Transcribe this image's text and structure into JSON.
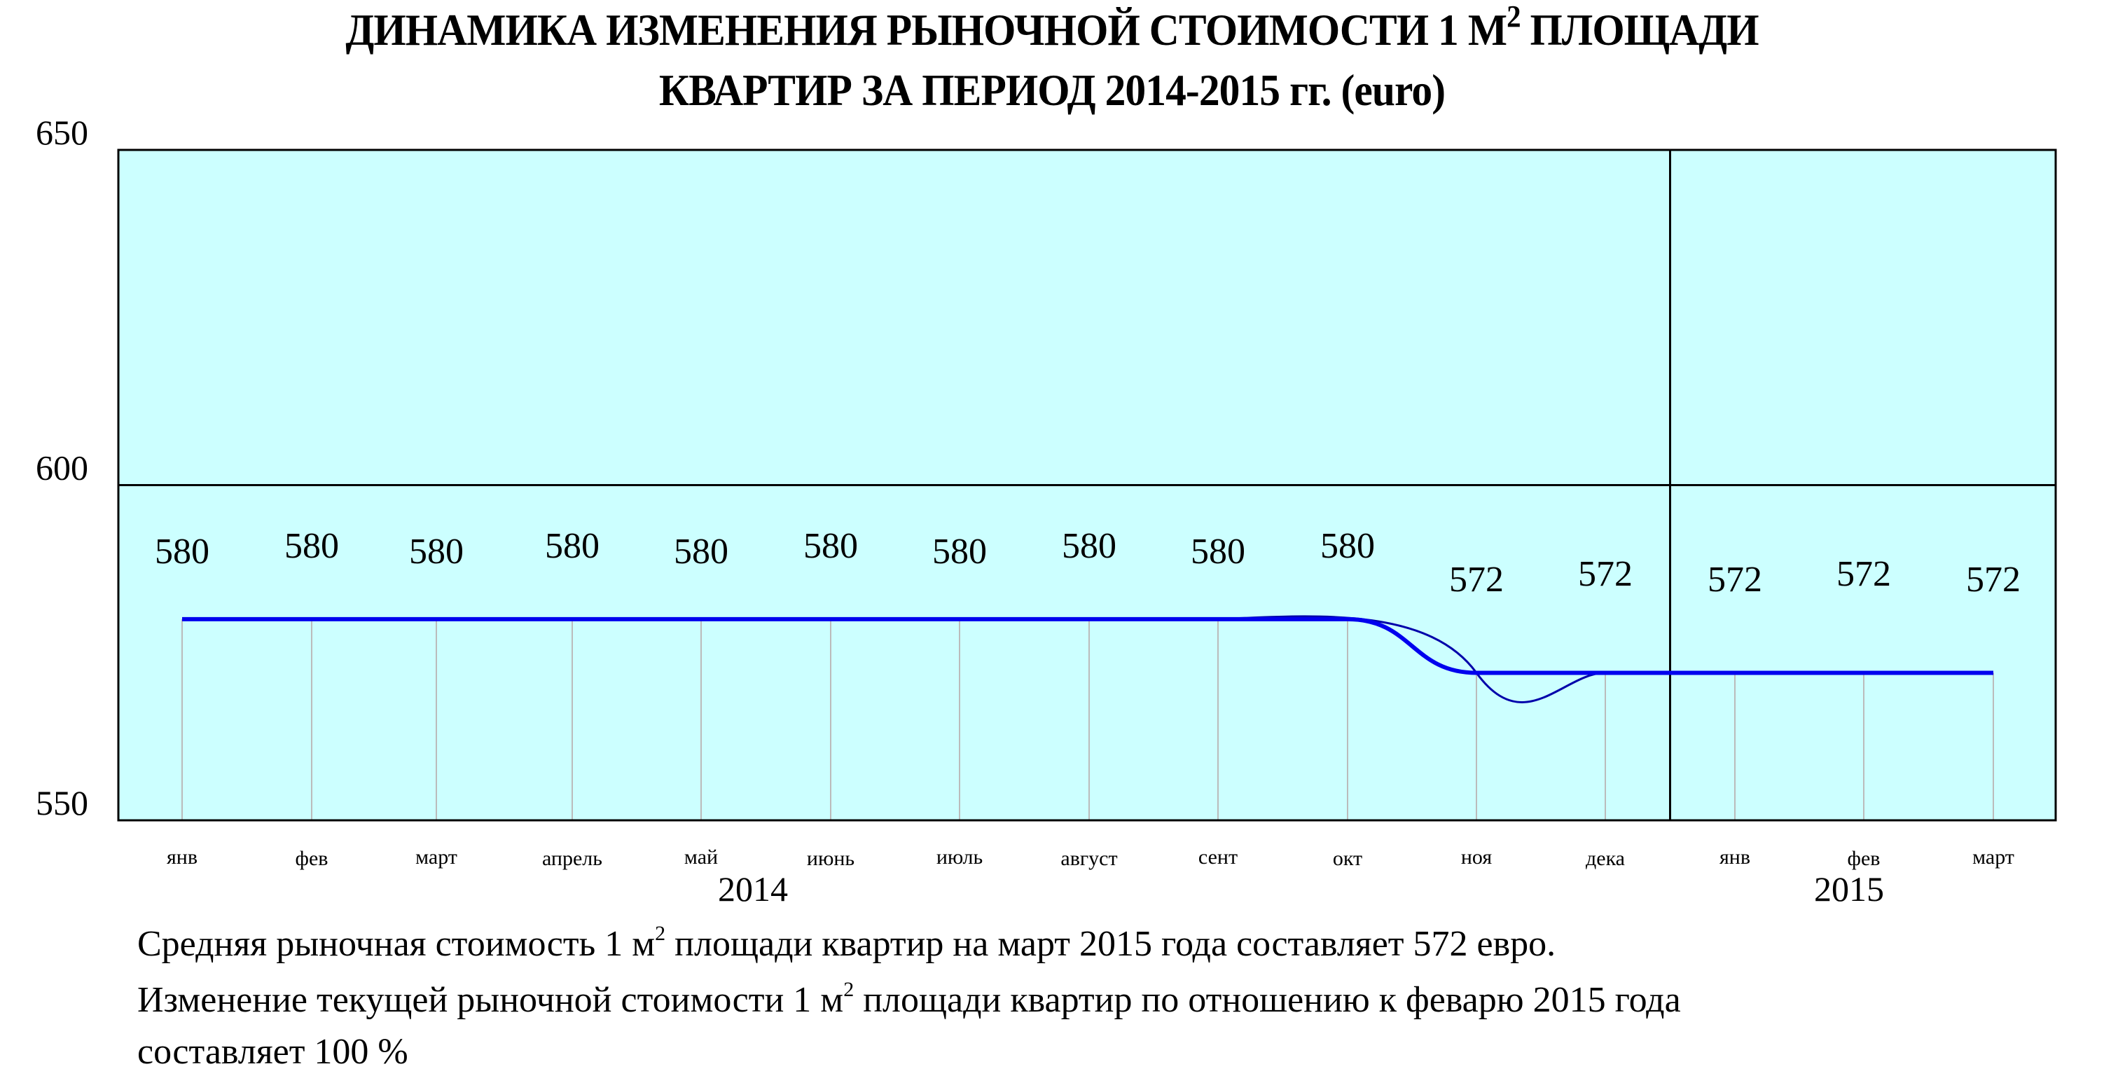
{
  "title": {
    "line1_a": "ДИНАМИКА ИЗМЕНЕНИЯ РЫНОЧНОЙ СТОИМОСТИ 1 М",
    "line1_sup": "2",
    "line1_b": " ПЛОЩАДИ",
    "line2": "КВАРТИР ЗА ПЕРИОД 2014-2015 гг. (euro)"
  },
  "colors": {
    "plot_bg": "#ccffff",
    "line": "#0000ee",
    "smooth_line": "#0000aa",
    "drop_lines": "#bbbbbb",
    "frame": "#000000"
  },
  "chart_data": {
    "type": "line",
    "title": "ДИНАМИКА ИЗМЕНЕНИЯ РЫНОЧНОЙ СТОИМОСТИ 1 М2 ПЛОЩАДИ КВАРТИР ЗА ПЕРИОД 2014-2015 гг. (euro)",
    "ylim": [
      550,
      650
    ],
    "yticks": [
      "650",
      "600",
      "550"
    ],
    "grid": "horizontal line at 600",
    "categories": [
      "янв",
      "фев",
      "март",
      "апрель",
      "май",
      "июнь",
      "июль",
      "август",
      "сент",
      "окт",
      "ноя",
      "дека",
      "янв",
      "фев",
      "март"
    ],
    "values": [
      580,
      580,
      580,
      580,
      580,
      580,
      580,
      580,
      580,
      580,
      572,
      572,
      572,
      572,
      572
    ],
    "value_labels": [
      "580",
      "580",
      "580",
      "580",
      "580",
      "580",
      "580",
      "580",
      "580",
      "580",
      "572",
      "572",
      "572",
      "572",
      "572"
    ],
    "year_groups": [
      {
        "label": "2014",
        "from": 0,
        "to": 11
      },
      {
        "label": "2015",
        "from": 12,
        "to": 14
      }
    ]
  },
  "notes": {
    "line1_a": "Средняя рыночная стоимость 1 м",
    "line1_sup": "2",
    "line1_b": " площади квартир на март 2015 года составляет 572 евро.",
    "line2_a": "Изменение текущей рыночной стоимости 1 м",
    "line2_sup": "2",
    "line2_b": " площади квартир по отношению к феварю 2015 года",
    "line3": "составляет  100  %"
  }
}
